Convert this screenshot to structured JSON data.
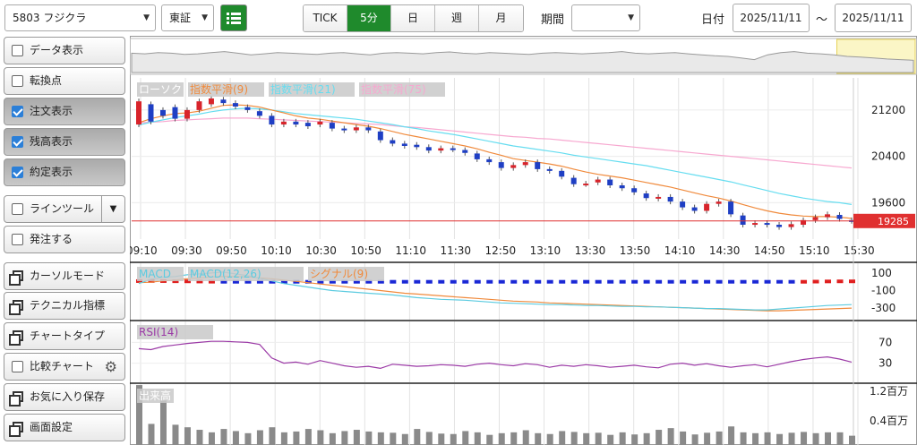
{
  "toolbar": {
    "symbol": "5803 フジクラ",
    "market": "東証",
    "periods": [
      "TICK",
      "5分",
      "日",
      "週",
      "月"
    ],
    "active_period": "5分",
    "period_label": "期間",
    "period_value": "",
    "date_label": "日付",
    "date_from": "2025/11/11",
    "date_sep": "〜",
    "date_to": "2025/11/11"
  },
  "sidebar": {
    "items": [
      {
        "label": "データ表示",
        "kind": "check",
        "checked": false
      },
      {
        "label": "転換点",
        "kind": "check",
        "checked": false
      },
      {
        "label": "注文表示",
        "kind": "check",
        "checked": true
      },
      {
        "label": "残高表示",
        "kind": "check",
        "checked": true
      },
      {
        "label": "約定表示",
        "kind": "check",
        "checked": true
      },
      {
        "label": "ラインツール",
        "kind": "check-drop",
        "checked": false
      },
      {
        "label": "発注する",
        "kind": "check",
        "checked": false
      },
      {
        "label": "カーソルモード",
        "kind": "window"
      },
      {
        "label": "テクニカル指標",
        "kind": "window"
      },
      {
        "label": "チャートタイプ",
        "kind": "window"
      },
      {
        "label": "比較チャート",
        "kind": "check-gear",
        "checked": false
      },
      {
        "label": "お気に入り保存",
        "kind": "window"
      },
      {
        "label": "画面設定",
        "kind": "window"
      }
    ]
  },
  "chart_data": [
    {
      "type": "candlestick",
      "legend": [
        {
          "name": "ローソク",
          "color": "#888888"
        },
        {
          "name": "指数平滑(9)",
          "color": "#f08a3c"
        },
        {
          "name": "指数平滑(21)",
          "color": "#66ddf0"
        },
        {
          "name": "指数平滑(75)",
          "color": "#f7a8d0"
        }
      ],
      "x_labels": [
        "09:10",
        "09:30",
        "09:50",
        "10:10",
        "10:30",
        "10:50",
        "11:10",
        "11:30",
        "12:50",
        "13:10",
        "13:30",
        "13:50",
        "14:10",
        "14:30",
        "14:50",
        "15:10",
        "15:30"
      ],
      "y_ticks": [
        21200,
        20400,
        19600
      ],
      "ylim": [
        19050,
        21600
      ],
      "current_price_label": "19285",
      "current_price": 19285,
      "price_line_color": "#e03030",
      "candles": [
        {
          "o": 20950,
          "c": 21350
        },
        {
          "o": 21300,
          "c": 21000
        },
        {
          "o": 21200,
          "c": 21100
        },
        {
          "o": 21250,
          "c": 21050
        },
        {
          "o": 21050,
          "c": 21200
        },
        {
          "o": 21200,
          "c": 21350
        },
        {
          "o": 21300,
          "c": 21400
        },
        {
          "o": 21380,
          "c": 21320
        },
        {
          "o": 21320,
          "c": 21260
        },
        {
          "o": 21250,
          "c": 21200
        },
        {
          "o": 21180,
          "c": 21100
        },
        {
          "o": 21100,
          "c": 20950
        },
        {
          "o": 20950,
          "c": 21000
        },
        {
          "o": 21000,
          "c": 20950
        },
        {
          "o": 20980,
          "c": 20920
        },
        {
          "o": 20950,
          "c": 21000
        },
        {
          "o": 20980,
          "c": 20880
        },
        {
          "o": 20880,
          "c": 20850
        },
        {
          "o": 20850,
          "c": 20900
        },
        {
          "o": 20900,
          "c": 20850
        },
        {
          "o": 20830,
          "c": 20680
        },
        {
          "o": 20680,
          "c": 20620
        },
        {
          "o": 20620,
          "c": 20580
        },
        {
          "o": 20600,
          "c": 20560
        },
        {
          "o": 20560,
          "c": 20500
        },
        {
          "o": 20500,
          "c": 20540
        },
        {
          "o": 20540,
          "c": 20520
        },
        {
          "o": 20510,
          "c": 20460
        },
        {
          "o": 20450,
          "c": 20350
        },
        {
          "o": 20350,
          "c": 20300
        },
        {
          "o": 20300,
          "c": 20200
        },
        {
          "o": 20200,
          "c": 20250
        },
        {
          "o": 20250,
          "c": 20300
        },
        {
          "o": 20300,
          "c": 20180
        },
        {
          "o": 20180,
          "c": 20150
        },
        {
          "o": 20150,
          "c": 20050
        },
        {
          "o": 20030,
          "c": 19920
        },
        {
          "o": 19920,
          "c": 19930
        },
        {
          "o": 19950,
          "c": 20000
        },
        {
          "o": 20000,
          "c": 19900
        },
        {
          "o": 19900,
          "c": 19850
        },
        {
          "o": 19850,
          "c": 19780
        },
        {
          "o": 19760,
          "c": 19680
        },
        {
          "o": 19670,
          "c": 19700
        },
        {
          "o": 19700,
          "c": 19620
        },
        {
          "o": 19620,
          "c": 19520
        },
        {
          "o": 19520,
          "c": 19460
        },
        {
          "o": 19460,
          "c": 19580
        },
        {
          "o": 19580,
          "c": 19620
        },
        {
          "o": 19620,
          "c": 19400
        },
        {
          "o": 19380,
          "c": 19220
        },
        {
          "o": 19220,
          "c": 19250
        },
        {
          "o": 19250,
          "c": 19220
        },
        {
          "o": 19220,
          "c": 19180
        },
        {
          "o": 19180,
          "c": 19230
        },
        {
          "o": 19220,
          "c": 19300
        },
        {
          "o": 19300,
          "c": 19350
        },
        {
          "o": 19350,
          "c": 19400
        },
        {
          "o": 19390,
          "c": 19320
        },
        {
          "o": 19300,
          "c": 19285
        }
      ],
      "ema9": [
        20980,
        21050,
        21100,
        21140,
        21150,
        21180,
        21230,
        21280,
        21290,
        21280,
        21250,
        21200,
        21150,
        21100,
        21060,
        21040,
        21010,
        20980,
        20950,
        20920,
        20880,
        20830,
        20780,
        20740,
        20700,
        20660,
        20620,
        20580,
        20530,
        20470,
        20420,
        20360,
        20330,
        20300,
        20270,
        20230,
        20180,
        20130,
        20090,
        20060,
        20030,
        19990,
        19950,
        19910,
        19870,
        19820,
        19770,
        19720,
        19680,
        19630,
        19570,
        19510,
        19460,
        19420,
        19390,
        19370,
        19360,
        19360,
        19350,
        19330
      ],
      "ema21": [
        20940,
        20990,
        21030,
        21070,
        21100,
        21130,
        21170,
        21200,
        21220,
        21230,
        21220,
        21200,
        21170,
        21140,
        21120,
        21100,
        21080,
        21060,
        21040,
        21010,
        20980,
        20950,
        20910,
        20880,
        20840,
        20810,
        20780,
        20740,
        20700,
        20660,
        20620,
        20580,
        20550,
        20520,
        20490,
        20460,
        20420,
        20390,
        20360,
        20330,
        20300,
        20270,
        20240,
        20200,
        20160,
        20120,
        20080,
        20040,
        20000,
        19960,
        19910,
        19860,
        19810,
        19760,
        19720,
        19680,
        19650,
        19620,
        19600,
        19570
      ],
      "ema75": [
        20980,
        20990,
        21000,
        21020,
        21030,
        21040,
        21050,
        21060,
        21060,
        21060,
        21050,
        21040,
        21030,
        21020,
        21010,
        21000,
        20990,
        20980,
        20970,
        20960,
        20950,
        20930,
        20910,
        20900,
        20880,
        20860,
        20840,
        20820,
        20800,
        20780,
        20760,
        20740,
        20730,
        20710,
        20700,
        20680,
        20660,
        20640,
        20620,
        20600,
        20580,
        20560,
        20540,
        20520,
        20500,
        20480,
        20460,
        20440,
        20420,
        20400,
        20380,
        20360,
        20340,
        20320,
        20300,
        20280,
        20260,
        20240,
        20220,
        20200
      ]
    },
    {
      "type": "line",
      "legend": [
        {
          "name": "MACD",
          "color": "#5ccbe0"
        },
        {
          "name": "MACD(12,26)",
          "color": "#5ccbe0"
        },
        {
          "name": "シグナル(9)",
          "color": "#f08a3c"
        }
      ],
      "y_ticks": [
        100,
        -100,
        -300
      ],
      "ylim": [
        -370,
        150
      ],
      "hist": [
        40,
        45,
        40,
        30,
        25,
        15,
        5,
        -10,
        -25,
        -40,
        -50,
        -55,
        -60,
        -65,
        -70,
        -70,
        -70,
        -70,
        -70,
        -70,
        -72,
        -75,
        -78,
        -78,
        -76,
        -74,
        -72,
        -70,
        -70,
        -70,
        -70,
        -70,
        -70,
        -70,
        -70,
        -70,
        -68,
        -66,
        -64,
        -62,
        -60,
        -58,
        -56,
        -54,
        -52,
        -50,
        -48,
        -46,
        -44,
        -42,
        -40,
        -38,
        -30,
        -20,
        -10,
        0,
        10,
        20,
        25,
        25
      ],
      "macd": [
        -20,
        30,
        50,
        60,
        80,
        90,
        100,
        110,
        90,
        70,
        40,
        10,
        -20,
        -40,
        -60,
        -80,
        -100,
        -110,
        -120,
        -130,
        -140,
        -150,
        -165,
        -180,
        -190,
        -200,
        -205,
        -210,
        -220,
        -230,
        -240,
        -245,
        -250,
        -255,
        -260,
        -260,
        -265,
        -270,
        -270,
        -275,
        -280,
        -280,
        -285,
        -285,
        -290,
        -295,
        -300,
        -305,
        -305,
        -310,
        -315,
        -320,
        -320,
        -310,
        -300,
        -290,
        -280,
        -270,
        -265,
        -260
      ],
      "signal": [
        -10,
        -5,
        10,
        20,
        35,
        45,
        55,
        60,
        60,
        55,
        45,
        35,
        20,
        5,
        -10,
        -25,
        -40,
        -55,
        -70,
        -85,
        -100,
        -115,
        -130,
        -140,
        -150,
        -160,
        -170,
        -180,
        -190,
        -200,
        -210,
        -220,
        -225,
        -230,
        -240,
        -245,
        -250,
        -255,
        -260,
        -265,
        -270,
        -275,
        -280,
        -285,
        -290,
        -295,
        -300,
        -305,
        -310,
        -315,
        -320,
        -325,
        -330,
        -330,
        -325,
        -320,
        -315,
        -310,
        -305,
        -300
      ]
    },
    {
      "type": "line",
      "legend": [
        {
          "name": "RSI(14)",
          "color": "#9b3aa6"
        }
      ],
      "y_ticks": [
        70,
        30
      ],
      "ylim": [
        0,
        100
      ],
      "rsi": [
        58,
        56,
        62,
        65,
        68,
        70,
        72,
        72,
        71,
        70,
        66,
        40,
        30,
        32,
        28,
        35,
        30,
        25,
        22,
        24,
        20,
        28,
        26,
        24,
        25,
        27,
        26,
        24,
        28,
        30,
        27,
        25,
        29,
        27,
        22,
        26,
        24,
        27,
        25,
        22,
        24,
        26,
        23,
        21,
        28,
        30,
        26,
        29,
        25,
        22,
        25,
        27,
        23,
        28,
        33,
        37,
        40,
        42,
        38,
        32
      ]
    },
    {
      "type": "bar",
      "legend": [
        {
          "name": "出来高",
          "color": "#888888"
        }
      ],
      "y_ticks_labels": [
        "1.2百万",
        "0.4百万"
      ],
      "ylim": [
        0,
        1400000
      ],
      "volume": [
        1420000,
        500000,
        1050000,
        480000,
        420000,
        360000,
        300000,
        380000,
        330000,
        280000,
        350000,
        420000,
        300000,
        320000,
        380000,
        350000,
        280000,
        330000,
        360000,
        320000,
        300000,
        290000,
        260000,
        380000,
        310000,
        270000,
        260000,
        330000,
        300000,
        240000,
        280000,
        300000,
        350000,
        280000,
        260000,
        330000,
        310000,
        280000,
        290000,
        240000,
        300000,
        250000,
        280000,
        360000,
        400000,
        320000,
        250000,
        290000,
        320000,
        440000,
        300000,
        280000,
        300000,
        260000,
        290000,
        310000,
        280000,
        300000,
        300000,
        220000
      ]
    }
  ],
  "overview": {
    "series": [
      0.6,
      0.58,
      0.62,
      0.6,
      0.56,
      0.58,
      0.62,
      0.65,
      0.6,
      0.55,
      0.58,
      0.62,
      0.6,
      0.58,
      0.56,
      0.6,
      0.62,
      0.58,
      0.55,
      0.6,
      0.62,
      0.6,
      0.58,
      0.62,
      0.64,
      0.6,
      0.58,
      0.62,
      0.6,
      0.58,
      0.56,
      0.6,
      0.62,
      0.6,
      0.58,
      0.6,
      0.62,
      0.65,
      0.6,
      0.58,
      0.6,
      0.62,
      0.58,
      0.55,
      0.52,
      0.5,
      0.45,
      0.4,
      0.55,
      0.62,
      0.65,
      0.6,
      0.58,
      0.55,
      0.5,
      0.48,
      0.45,
      0.42,
      0.4,
      0.38
    ],
    "highlight_from": 0.9
  }
}
